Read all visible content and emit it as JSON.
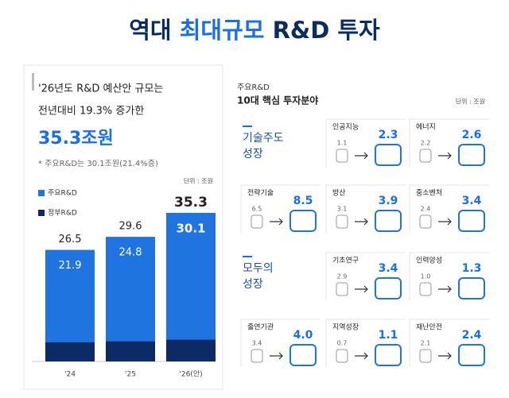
{
  "title": {
    "prefix": "역대",
    "highlight": "최대규모",
    "suffix": "R&D 투자"
  },
  "summary": {
    "line1": "'26년도 R&D 예산안 규모는",
    "line2": "전년대비 19.3% 증가한",
    "amount": "35.3조원",
    "note": "* 주요R&D는 30.1조원(21.4%증)"
  },
  "chart_data": {
    "type": "bar",
    "stacked": true,
    "unit": "단위 : 조원",
    "categories": [
      "'24",
      "'25",
      "'26(안)"
    ],
    "series": [
      {
        "name": "정부R&D",
        "color": "#0c2a66",
        "values": [
          4.6,
          4.8,
          5.2
        ]
      },
      {
        "name": "주요R&D",
        "color": "#1f74e0",
        "values": [
          21.9,
          24.8,
          30.1
        ]
      }
    ],
    "totals": [
      26.5,
      29.6,
      35.3
    ],
    "legend": "upper-left"
  },
  "panel": {
    "label": "주요R&D",
    "heading": "10대 핵심 투자분야",
    "unit": "단위 : 조원",
    "groups": [
      {
        "line1": "기술주도",
        "line2": "성장"
      },
      {
        "line1": "모두의",
        "line2": "성장"
      }
    ],
    "items": [
      {
        "name": "인공지능",
        "before": "1.1",
        "after": "2.3"
      },
      {
        "name": "에너지",
        "before": "2.2",
        "after": "2.6"
      },
      {
        "name": "전략기술",
        "before": "6.5",
        "after": "8.5"
      },
      {
        "name": "방산",
        "before": "3.1",
        "after": "3.9"
      },
      {
        "name": "중소벤처",
        "before": "2.4",
        "after": "3.4"
      },
      {
        "name": "기초연구",
        "before": "2.9",
        "after": "3.4"
      },
      {
        "name": "인력양성",
        "before": "1.0",
        "after": "1.3"
      },
      {
        "name": "출연기관",
        "before": "3.4",
        "after": "4.0"
      },
      {
        "name": "지역성장",
        "before": "0.7",
        "after": "1.1"
      },
      {
        "name": "재난안전",
        "before": "2.1",
        "after": "2.4"
      }
    ]
  }
}
